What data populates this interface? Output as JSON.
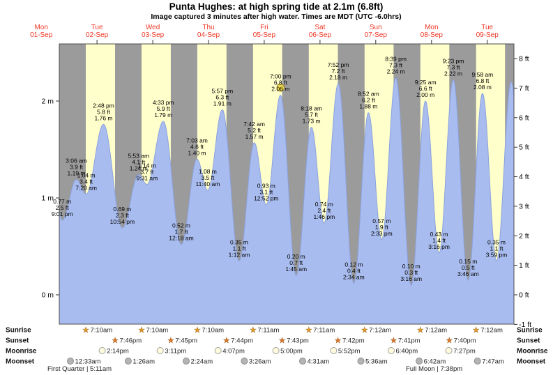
{
  "chart_data": {
    "type": "area",
    "title": "Punta Hughes: at high  spring tide at 2.1m (6.8ft)",
    "subtitle": "Image captured 3 minutes after high water. Times are MDT (UTC -6.0hrs)",
    "ylabel_left_unit": "m",
    "ylabel_right_unit": "ft",
    "ylim_m": [
      -0.3048,
      2.59
    ],
    "y_axis_left": {
      "labels": [
        "2 m",
        "1 m",
        "0 m"
      ],
      "values_m": [
        2,
        1,
        0
      ]
    },
    "y_axis_right": {
      "labels": [
        "8 ft",
        "7 ft",
        "6 ft",
        "5 ft",
        "4 ft",
        "3 ft",
        "2 ft",
        "1 ft",
        "0 ft",
        "-1 ft"
      ],
      "values_ft": [
        8,
        7,
        6,
        5,
        4,
        3,
        2,
        1,
        0,
        -1
      ]
    },
    "days": [
      {
        "day": "Mon",
        "date": "01-Sep"
      },
      {
        "day": "Tue",
        "date": "02-Sep"
      },
      {
        "day": "Wed",
        "date": "03-Sep"
      },
      {
        "day": "Thu",
        "date": "04-Sep"
      },
      {
        "day": "Fri",
        "date": "05-Sep"
      },
      {
        "day": "Sat",
        "date": "06-Sep"
      },
      {
        "day": "Sun",
        "date": "07-Sep"
      },
      {
        "day": "Mon",
        "date": "08-Sep"
      },
      {
        "day": "Tue",
        "date": "09-Sep"
      }
    ],
    "tide_events": [
      {
        "type": "low",
        "time": "9:01 pm",
        "m": "0.77",
        "ft": "2.5",
        "t": 21.017
      },
      {
        "type": "high",
        "time": "3:06 am",
        "m": "1.19",
        "ft": "3.9",
        "t": 27.1
      },
      {
        "type": "low",
        "time": "7:20 am",
        "m": "1.04",
        "ft": "3.4",
        "t": 31.333
      },
      {
        "type": "high",
        "time": "2:48 pm",
        "m": "1.76",
        "ft": "5.8",
        "t": 38.8
      },
      {
        "type": "low",
        "time": "10:54 pm",
        "m": "0.69",
        "ft": "2.3",
        "t": 46.9
      },
      {
        "type": "high",
        "time": "5:53 am",
        "m": "1.24",
        "ft": "4.1",
        "t": 53.883
      },
      {
        "type": "low",
        "time": "9:31 am",
        "m": "1.14",
        "ft": "3.7",
        "t": 57.517
      },
      {
        "type": "high",
        "time": "4:33 pm",
        "m": "1.79",
        "ft": "5.9",
        "t": 64.55
      },
      {
        "type": "low",
        "time": "12:18 am",
        "m": "0.52",
        "ft": "1.7",
        "t": 72.3
      },
      {
        "type": "high",
        "time": "7:03 am",
        "m": "1.40",
        "ft": "4.6",
        "t": 79.05
      },
      {
        "type": "low",
        "time": "11:40 am",
        "m": "1.08",
        "ft": "3.5",
        "t": 83.667
      },
      {
        "type": "high",
        "time": "5:57 pm",
        "m": "1.91",
        "ft": "6.3",
        "t": 89.95
      },
      {
        "type": "low",
        "time": "1:12 am",
        "m": "0.35",
        "ft": "1.1",
        "t": 97.2
      },
      {
        "type": "high",
        "time": "7:42 am",
        "m": "1.57",
        "ft": "5.2",
        "t": 103.7
      },
      {
        "type": "low",
        "time": "12:52 pm",
        "m": "0.93",
        "ft": "3.1",
        "t": 108.867
      },
      {
        "type": "high",
        "time": "7:00 pm",
        "m": "2.06",
        "ft": "6.8",
        "t": 115.0
      },
      {
        "type": "low",
        "time": "1:45 am",
        "m": "0.20",
        "ft": "0.7",
        "t": 121.75
      },
      {
        "type": "high",
        "time": "8:18 am",
        "m": "1.73",
        "ft": "5.7",
        "t": 128.3
      },
      {
        "type": "low",
        "time": "1:46 pm",
        "m": "0.74",
        "ft": "2.4",
        "t": 133.767
      },
      {
        "type": "high",
        "time": "7:52 pm",
        "m": "2.18",
        "ft": "7.2",
        "t": 139.867
      },
      {
        "type": "low",
        "time": "2:34 am",
        "m": "0.12",
        "ft": "0.4",
        "t": 146.567
      },
      {
        "type": "high",
        "time": "8:52 am",
        "m": "1.88",
        "ft": "6.2",
        "t": 152.867
      },
      {
        "type": "low",
        "time": "2:33 pm",
        "m": "0.57",
        "ft": "1.9",
        "t": 158.55
      },
      {
        "type": "high",
        "time": "8:39 pm",
        "m": "2.24",
        "ft": "7.3",
        "t": 164.65
      },
      {
        "type": "low",
        "time": "3:16 am",
        "m": "0.10",
        "ft": "0.3",
        "t": 171.267
      },
      {
        "type": "high",
        "time": "9:25 am",
        "m": "2.00",
        "ft": "6.6",
        "t": 177.417
      },
      {
        "type": "low",
        "time": "3:16 pm",
        "m": "0.43",
        "ft": "1.4",
        "t": 183.267
      },
      {
        "type": "high",
        "time": "9:23 pm",
        "m": "2.22",
        "ft": "7.3",
        "t": 189.383
      },
      {
        "type": "low",
        "time": "3:46 am",
        "m": "0.15",
        "ft": "0.5",
        "t": 195.767
      },
      {
        "type": "high",
        "time": "9:58 am",
        "m": "2.08",
        "ft": "6.8",
        "t": 201.967
      },
      {
        "type": "low",
        "time": "3:59 pm",
        "m": "0.35",
        "ft": "1.1",
        "t": 207.983
      }
    ],
    "marker": {
      "event_index": 15,
      "fill": "#F2DE4F",
      "stroke": "#9a8326"
    },
    "sun": {
      "sunrise": [
        {
          "time": "7:10am",
          "t": 31.167
        },
        {
          "time": "7:10am",
          "t": 55.167
        },
        {
          "time": "7:10am",
          "t": 79.167
        },
        {
          "time": "7:11am",
          "t": 103.183
        },
        {
          "time": "7:11am",
          "t": 127.183
        },
        {
          "time": "7:12am",
          "t": 151.2
        },
        {
          "time": "7:12am",
          "t": 175.2
        },
        {
          "time": "7:12am",
          "t": 199.2
        }
      ],
      "sunset": [
        {
          "time": "7:46pm",
          "t": 43.767
        },
        {
          "time": "7:45pm",
          "t": 67.75
        },
        {
          "time": "7:44pm",
          "t": 91.733
        },
        {
          "time": "7:43pm",
          "t": 115.717
        },
        {
          "time": "7:42pm",
          "t": 139.7
        },
        {
          "time": "7:41pm",
          "t": 163.683
        },
        {
          "time": "7:40pm",
          "t": 187.667
        }
      ]
    },
    "moon": {
      "moonrise": [
        {
          "time": "2:14pm",
          "t": 38.233
        },
        {
          "time": "3:11pm",
          "t": 63.183
        },
        {
          "time": "4:07pm",
          "t": 88.117
        },
        {
          "time": "5:00pm",
          "t": 113.0
        },
        {
          "time": "5:52pm",
          "t": 137.867
        },
        {
          "time": "6:40pm",
          "t": 162.667
        },
        {
          "time": "7:27pm",
          "t": 187.45
        }
      ],
      "moonset": [
        {
          "time": "12:33am",
          "t": 24.55
        },
        {
          "time": "1:26am",
          "t": 49.433
        },
        {
          "time": "2:24am",
          "t": 74.4
        },
        {
          "time": "3:26am",
          "t": 99.433
        },
        {
          "time": "4:31am",
          "t": 124.517
        },
        {
          "time": "5:36am",
          "t": 149.6
        },
        {
          "time": "6:42am",
          "t": 174.7
        },
        {
          "time": "7:47am",
          "t": 199.783
        }
      ],
      "phases": {
        "first_quarter": "First Quarter | 5:11am",
        "full_moon": "Full Moon | 7:38pm"
      }
    },
    "astro_row_labels": [
      "Sunrise",
      "Sunset",
      "Moonrise",
      "Moonset"
    ],
    "bands": {
      "daylight_hours": [
        [
          31.167,
          43.767
        ],
        [
          55.167,
          67.75
        ],
        [
          79.167,
          91.733
        ],
        [
          103.183,
          115.717
        ],
        [
          127.183,
          139.7
        ],
        [
          151.2,
          163.683
        ],
        [
          175.2,
          187.667
        ],
        [
          199.2,
          211.65
        ]
      ]
    },
    "colors": {
      "night": "#9B9B9B",
      "day": "#FFFFCB",
      "curve_fill": "#A9BCEF",
      "curve_line": "#8BA2DE",
      "date_label": "#EE3524",
      "annotation": "#000000",
      "sunrise_star": "#E99B23",
      "sunset_star": "#E2712A",
      "moonrise_fill": "#FFFBDC",
      "moonrise_stroke": "#A0A0A0",
      "moonset_fill": "#B4B4B4",
      "moonset_stroke": "#8C8C8C"
    }
  }
}
